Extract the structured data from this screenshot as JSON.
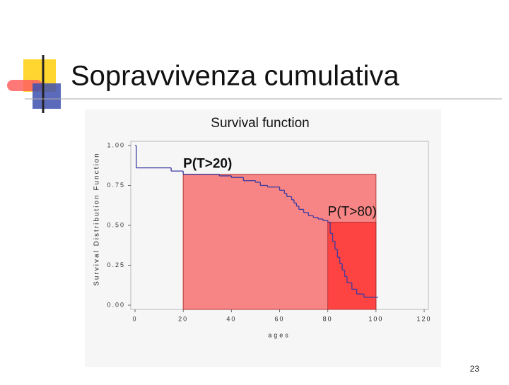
{
  "slide_title": "Sopravvivenza cumulativa",
  "page_number": "23",
  "chart_data": {
    "type": "step",
    "title": "Survival function",
    "x_label": "ages",
    "y_label": "Survival Distribution Function",
    "x": [
      0,
      0.5,
      15,
      20,
      35,
      40,
      45,
      50,
      52,
      55,
      60,
      62,
      63,
      65,
      66,
      67,
      68,
      70,
      72,
      74,
      76,
      78,
      80,
      81,
      82,
      83,
      84,
      85,
      86,
      87,
      88,
      90,
      92,
      95,
      100
    ],
    "series": [
      {
        "name": "Survival",
        "color": "#3a3aa0",
        "values": [
          1.0,
          0.86,
          0.84,
          0.82,
          0.81,
          0.8,
          0.78,
          0.77,
          0.75,
          0.74,
          0.72,
          0.7,
          0.68,
          0.66,
          0.64,
          0.62,
          0.6,
          0.58,
          0.56,
          0.55,
          0.54,
          0.53,
          0.52,
          0.45,
          0.4,
          0.35,
          0.3,
          0.26,
          0.22,
          0.18,
          0.14,
          0.1,
          0.07,
          0.05,
          0.05
        ]
      }
    ],
    "highlights": [
      {
        "label": "P(T>20)",
        "x": [
          20,
          100
        ],
        "value": 0.82,
        "color": "#f88080"
      },
      {
        "label": "P(T>80)",
        "x": [
          80,
          100
        ],
        "value": 0.52,
        "color": "#ff4040"
      }
    ],
    "xlim": [
      0,
      120
    ],
    "xticks": [
      0,
      20,
      40,
      60,
      80,
      100,
      120
    ],
    "ylim": [
      0,
      1
    ],
    "yticks": [
      {
        "value": 0,
        "label": "0.00"
      },
      {
        "value": 0.25,
        "label": "0.25"
      },
      {
        "value": 0.5,
        "label": "0.50"
      },
      {
        "value": 0.75,
        "label": "0.75"
      },
      {
        "value": 1,
        "label": "1.00"
      }
    ]
  }
}
